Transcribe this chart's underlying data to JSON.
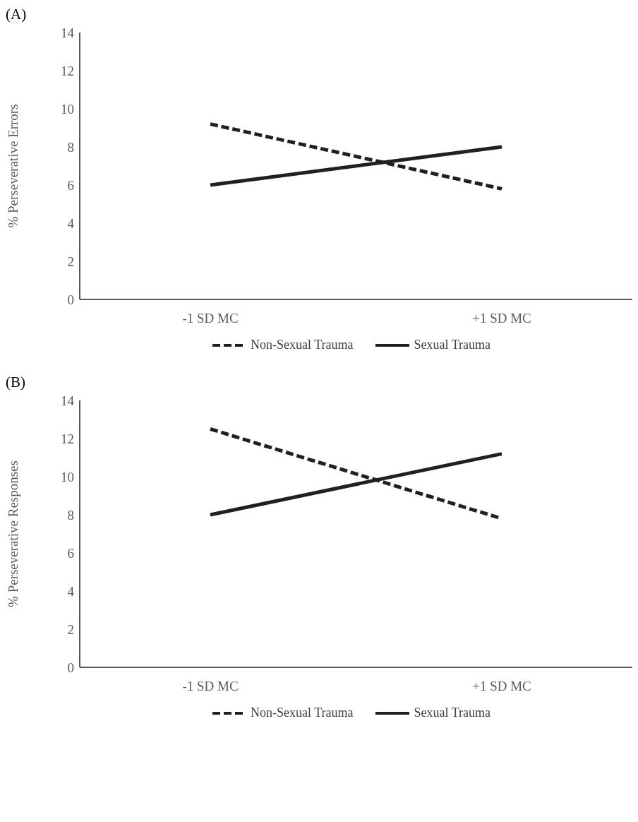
{
  "chart_data": [
    {
      "type": "line",
      "title": "(A)",
      "ylabel": "% Perseverative Errors",
      "categories": [
        "-1 SD MC",
        "+1 SD MC"
      ],
      "ylim": [
        0,
        14
      ],
      "yticks": [
        0,
        2,
        4,
        6,
        8,
        10,
        12,
        14
      ],
      "grid": false,
      "legend": "bottom",
      "marker": "none",
      "series": [
        {
          "name": "Non-Sexual Trauma",
          "color": "#231f20",
          "line_style": "dashed",
          "values": [
            9.2,
            5.8
          ]
        },
        {
          "name": "Sexual Trauma",
          "color": "#231f20",
          "line_style": "solid",
          "values": [
            6.0,
            8.0
          ]
        }
      ]
    },
    {
      "type": "line",
      "title": "(B)",
      "ylabel": "% Perseverative Responses",
      "categories": [
        "-1 SD MC",
        "+1 SD MC"
      ],
      "ylim": [
        0,
        14
      ],
      "yticks": [
        0,
        2,
        4,
        6,
        8,
        10,
        12,
        14
      ],
      "grid": false,
      "legend": "bottom",
      "marker": "none",
      "series": [
        {
          "name": "Non-Sexual Trauma",
          "color": "#231f20",
          "line_style": "dashed",
          "values": [
            12.5,
            7.8
          ]
        },
        {
          "name": "Sexual Trauma",
          "color": "#231f20",
          "line_style": "solid",
          "values": [
            8.0,
            11.2
          ]
        }
      ]
    }
  ]
}
